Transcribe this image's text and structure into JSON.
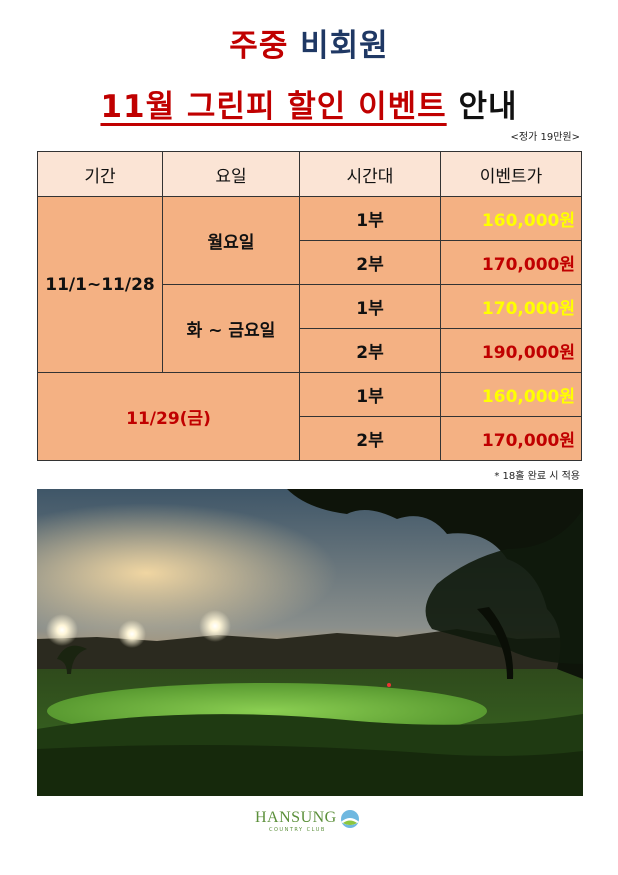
{
  "title": {
    "line1_red": "주중",
    "line1_navy": "비회원",
    "line2_red": "11월 그린피 할인 이벤트",
    "line2_black": "안내"
  },
  "regular_price": "<정가 19만원>",
  "table": {
    "headers": [
      "기간",
      "요일",
      "시간대",
      "이벤트가"
    ],
    "period_1": "11/1~11/28",
    "period_2": "11/29(금)",
    "day_1": "월요일",
    "day_2": "화 ~ 금요일",
    "rows": [
      {
        "slot": "1부",
        "price": "160,000원"
      },
      {
        "slot": "2부",
        "price": "170,000원"
      },
      {
        "slot": "1부",
        "price": "170,000원"
      },
      {
        "slot": "2부",
        "price": "190,000원"
      },
      {
        "slot": "1부",
        "price": "160,000원"
      },
      {
        "slot": "2부",
        "price": "170,000원"
      }
    ]
  },
  "note": "* 18홀 완료 시 적용",
  "logo": {
    "name": "HANSUNG",
    "sub": "COUNTRY CLUB"
  },
  "colors": {
    "title_red": "#c00000",
    "title_navy": "#1f3864",
    "table_cell": "#f4b183",
    "table_header": "#fbe4d5",
    "price_yellow": "#ffff00",
    "price_red": "#c00000"
  }
}
